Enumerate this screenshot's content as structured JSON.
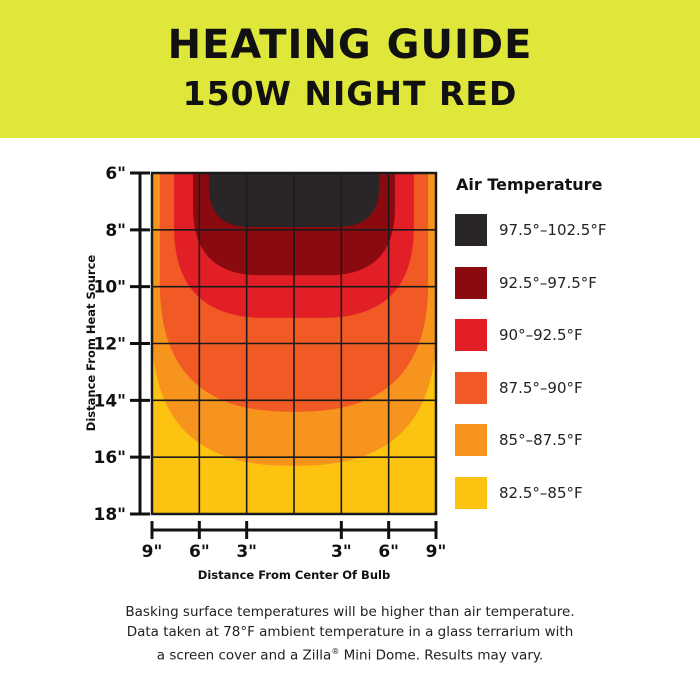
{
  "header": {
    "title": "HEATING GUIDE",
    "subtitle": "150W NIGHT RED",
    "background_color": "#dfe83a"
  },
  "chart_data": {
    "type": "heatmap",
    "title": "HEATING GUIDE",
    "subtitle": "150W NIGHT RED",
    "xlabel": "Distance From Center Of Bulb",
    "ylabel": "Distance From Heat Source",
    "x_ticks": [
      "9\"",
      "6\"",
      "3\"",
      "3\"",
      "6\"",
      "9\""
    ],
    "x_values": [
      -9,
      -6,
      -3,
      3,
      6,
      9
    ],
    "xlim": [
      -9,
      9
    ],
    "y_ticks": [
      "6\"",
      "8\"",
      "10\"",
      "12\"",
      "14\"",
      "16\"",
      "18\""
    ],
    "y_values": [
      6,
      8,
      10,
      12,
      14,
      16,
      18
    ],
    "ylim": [
      6,
      18
    ],
    "grid": true,
    "legend_position": "right",
    "legend_title": "Air Temperature",
    "zones": [
      {
        "label": "97.5°–102.5°F",
        "color": "#2a2526",
        "half_width": 5.4,
        "depth": 7.9
      },
      {
        "label": "92.5°–97.5°F",
        "color": "#8b0a0f",
        "half_width": 6.4,
        "depth": 9.6
      },
      {
        "label": "90°–92.5°F",
        "color": "#e21f26",
        "half_width": 7.6,
        "depth": 11.1
      },
      {
        "label": "87.5°–90°F",
        "color": "#f15a24",
        "half_width": 8.5,
        "depth": 14.4
      },
      {
        "label": "85°–87.5°F",
        "color": "#f7941d",
        "half_width": 9.0,
        "depth": 16.3
      },
      {
        "label": "82.5°–85°F",
        "color": "#fcc411",
        "half_width": 9.0,
        "depth": 18.0
      }
    ]
  },
  "footnote": {
    "line1": "Basking surface temperatures will be higher than air temperature.",
    "line2": "Data taken at 78°F ambient temperature in a glass terrarium with",
    "line3_pre": "a screen cover and a Zilla",
    "line3_sup": "®",
    "line3_post": " Mini Dome. Results may vary."
  }
}
